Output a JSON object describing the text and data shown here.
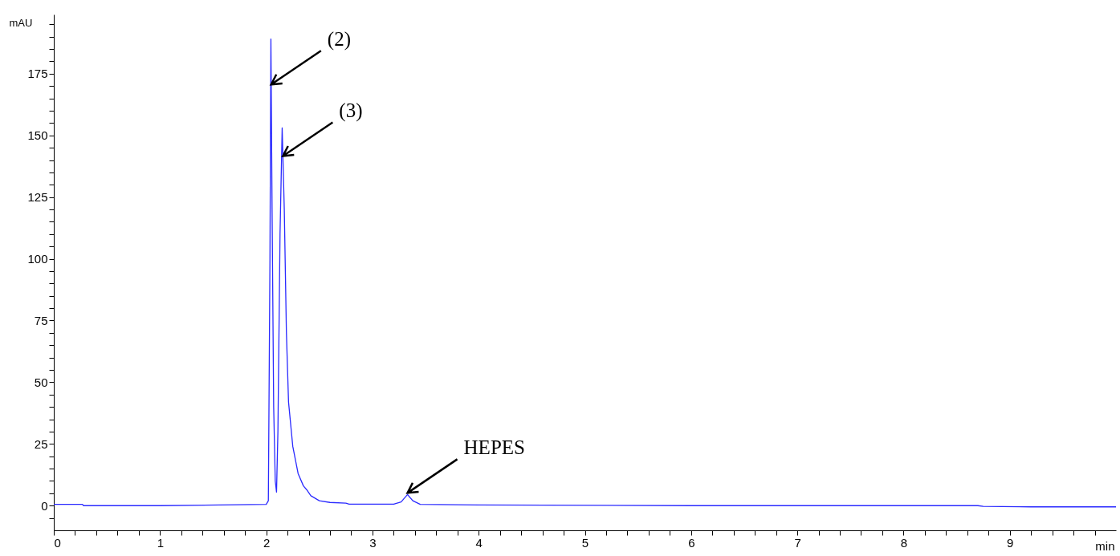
{
  "chart_data": {
    "type": "line",
    "xlabel": "min",
    "ylabel": "mAU",
    "x": [
      0,
      0.27,
      0.28,
      1.0,
      2.0,
      2.02,
      2.035,
      2.044,
      2.055,
      2.07,
      2.085,
      2.097,
      2.11,
      2.13,
      2.15,
      2.17,
      2.19,
      2.21,
      2.25,
      2.3,
      2.35,
      2.38,
      2.42,
      2.5,
      2.6,
      2.75,
      2.78,
      3.2,
      3.27,
      3.33,
      3.38,
      3.45,
      4.0,
      6.0,
      8.7,
      8.75,
      9.2,
      10.0
    ],
    "series": [
      {
        "color": "#2a2aff",
        "values": [
          0.5,
          0.5,
          0,
          0,
          0.5,
          2,
          100,
          189,
          120,
          40,
          10,
          5.5,
          30,
          110,
          153,
          120,
          70,
          42,
          24,
          13,
          8,
          6.5,
          4,
          2,
          1.3,
          1,
          0.6,
          0.6,
          1.5,
          4.5,
          2,
          0.5,
          0.3,
          0,
          0,
          -0.3,
          -0.5,
          -0.5
        ]
      }
    ],
    "xlim": [
      0,
      10
    ],
    "ylim": [
      -10,
      199
    ],
    "xticks": [
      0,
      {
        "value": 0.2,
        "label": null
      },
      {
        "value": 0.4,
        "label": null
      },
      {
        "value": 0.6,
        "label": null
      },
      {
        "value": 0.8,
        "label": null
      },
      1,
      {
        "value": 1.2,
        "label": null
      },
      {
        "value": 1.4,
        "label": null
      },
      {
        "value": 1.6,
        "label": null
      },
      {
        "value": 1.8,
        "label": null
      },
      2,
      {
        "value": 2.2,
        "label": null
      },
      {
        "value": 2.4,
        "label": null
      },
      {
        "value": 2.6,
        "label": null
      },
      {
        "value": 2.8,
        "label": null
      },
      3,
      {
        "value": 3.2,
        "label": null
      },
      {
        "value": 3.4,
        "label": null
      },
      {
        "value": 3.6,
        "label": null
      },
      {
        "value": 3.8,
        "label": null
      },
      4,
      {
        "value": 4.2,
        "label": null
      },
      {
        "value": 4.4,
        "label": null
      },
      {
        "value": 4.6,
        "label": null
      },
      {
        "value": 4.8,
        "label": null
      },
      5,
      {
        "value": 5.2,
        "label": null
      },
      {
        "value": 5.4,
        "label": null
      },
      {
        "value": 5.6,
        "label": null
      },
      {
        "value": 5.8,
        "label": null
      },
      6,
      {
        "value": 6.2,
        "label": null
      },
      {
        "value": 6.4,
        "label": null
      },
      {
        "value": 6.6,
        "label": null
      },
      {
        "value": 6.8,
        "label": null
      },
      7,
      {
        "value": 7.2,
        "label": null
      },
      {
        "value": 7.4,
        "label": null
      },
      {
        "value": 7.6,
        "label": null
      },
      {
        "value": 7.8,
        "label": null
      },
      8,
      {
        "value": 8.2,
        "label": null
      },
      {
        "value": 8.4,
        "label": null
      },
      {
        "value": 8.6,
        "label": null
      },
      {
        "value": 8.8,
        "label": null
      },
      9,
      {
        "value": 9.2,
        "label": null
      },
      {
        "value": 9.4,
        "label": null
      },
      {
        "value": 9.6,
        "label": null
      },
      {
        "value": 9.8,
        "label": null
      }
    ],
    "yticks": [
      {
        "value": -5,
        "label": null
      },
      0,
      {
        "value": 5,
        "label": null
      },
      {
        "value": 10,
        "label": null
      },
      {
        "value": 15,
        "label": null
      },
      {
        "value": 20,
        "label": null
      },
      25,
      {
        "value": 30,
        "label": null
      },
      {
        "value": 35,
        "label": null
      },
      {
        "value": 40,
        "label": null
      },
      {
        "value": 45,
        "label": null
      },
      50,
      {
        "value": 55,
        "label": null
      },
      {
        "value": 60,
        "label": null
      },
      {
        "value": 65,
        "label": null
      },
      {
        "value": 70,
        "label": null
      },
      75,
      {
        "value": 80,
        "label": null
      },
      {
        "value": 85,
        "label": null
      },
      {
        "value": 90,
        "label": null
      },
      {
        "value": 95,
        "label": null
      },
      100,
      {
        "value": 105,
        "label": null
      },
      {
        "value": 110,
        "label": null
      },
      {
        "value": 115,
        "label": null
      },
      {
        "value": 120,
        "label": null
      },
      125,
      {
        "value": 130,
        "label": null
      },
      {
        "value": 135,
        "label": null
      },
      {
        "value": 140,
        "label": null
      },
      {
        "value": 145,
        "label": null
      },
      150,
      {
        "value": 155,
        "label": null
      },
      {
        "value": 160,
        "label": null
      },
      {
        "value": 165,
        "label": null
      },
      {
        "value": 170,
        "label": null
      },
      175,
      {
        "value": 180,
        "label": null
      },
      {
        "value": 185,
        "label": null
      },
      {
        "value": 190,
        "label": null
      },
      {
        "value": 195,
        "label": null
      }
    ],
    "annotations": [
      {
        "text": "(2)",
        "x": 2.047,
        "y": 170
      },
      {
        "text": "(3)",
        "x": 2.157,
        "y": 141
      },
      {
        "text": "HEPES",
        "x": 3.33,
        "y": 4.5
      }
    ],
    "grid": false,
    "marker": "none",
    "line_style": "solid"
  }
}
